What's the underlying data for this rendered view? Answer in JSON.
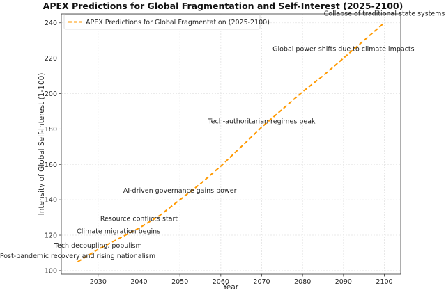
{
  "chart_data": {
    "type": "line",
    "title": "APEX Predictions for Global Fragmentation and Self-Interest (2025-2100)",
    "xlabel": "Year",
    "ylabel": "Intensity of Global Self-Interest (1-100)",
    "xlim": [
      2021,
      2104
    ],
    "ylim": [
      98,
      245
    ],
    "xticks": [
      2030,
      2040,
      2050,
      2060,
      2070,
      2080,
      2090,
      2100
    ],
    "yticks": [
      100,
      120,
      140,
      160,
      180,
      200,
      220,
      240
    ],
    "grid": true,
    "legend_position": "top-left",
    "series": [
      {
        "name": "APEX Predictions for Global Fragmentation (2025-2100)",
        "color": "#ff9900",
        "style": "dashed",
        "x": [
          2025,
          2030,
          2035,
          2040,
          2045,
          2050,
          2055,
          2060,
          2065,
          2070,
          2075,
          2080,
          2085,
          2090,
          2095,
          2100
        ],
        "y": [
          105,
          112,
          118,
          124,
          131,
          140,
          149,
          159,
          170,
          181,
          191,
          201,
          210,
          220,
          230,
          240
        ]
      }
    ],
    "annotations": [
      {
        "text": "Post-pandemic recovery and rising nationalism",
        "x": 2025,
        "y": 107
      },
      {
        "text": "Tech decoupling, populism",
        "x": 2030,
        "y": 113
      },
      {
        "text": "Climate migration begins",
        "x": 2035,
        "y": 121
      },
      {
        "text": "Resource conflicts start",
        "x": 2040,
        "y": 128
      },
      {
        "text": "AI-driven governance gains power",
        "x": 2050,
        "y": 144
      },
      {
        "text": "Tech-authoritarian regimes peak",
        "x": 2070,
        "y": 183
      },
      {
        "text": "Global power shifts due to climate impacts",
        "x": 2090,
        "y": 224
      },
      {
        "text": "Collapse of traditional state systems",
        "x": 2100,
        "y": 244
      }
    ]
  }
}
